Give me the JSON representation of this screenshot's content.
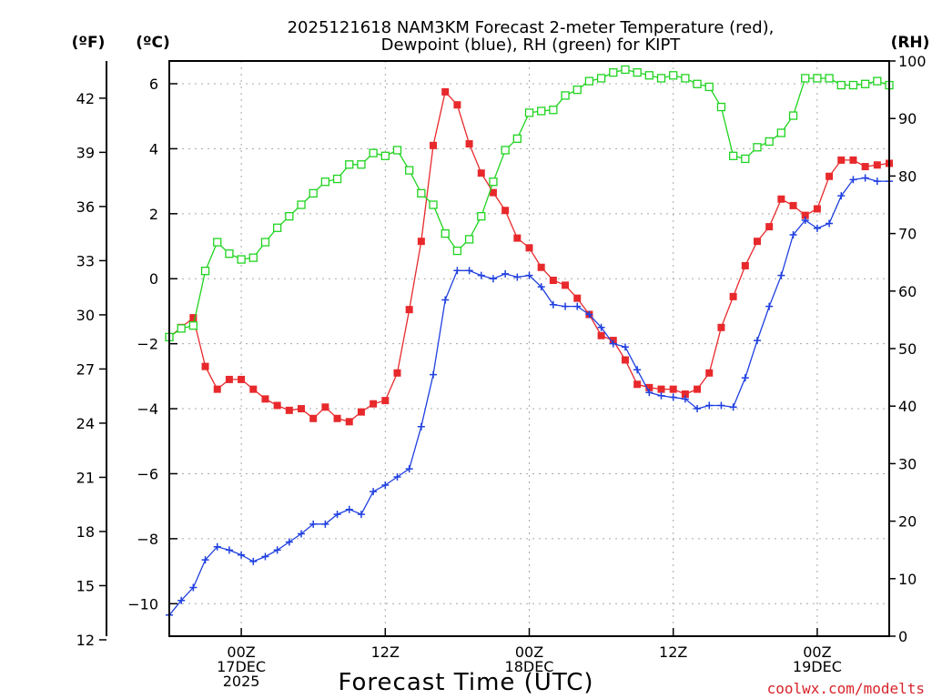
{
  "chart_data": {
    "type": "line",
    "title_line1": "2025121618 NAM3KM Forecast 2-meter Temperature (red),",
    "title_line2": "Dewpoint (blue), RH (green) for KIPT",
    "units": {
      "left_outer": "(ºF)",
      "left_inner": "(ºC)",
      "right": "(RH)"
    },
    "xlabel": "Forecast Time (UTC)",
    "credit": "coolwx.com/modelts",
    "x_start_hour": 18,
    "x_end_hour": 78,
    "x_ticks": [
      {
        "hour": 24,
        "line1": "00Z",
        "line2": "17DEC",
        "line3": "2025"
      },
      {
        "hour": 36,
        "line1": "12Z",
        "line2": "",
        "line3": ""
      },
      {
        "hour": 48,
        "line1": "00Z",
        "line2": "18DEC",
        "line3": ""
      },
      {
        "hour": 60,
        "line1": "12Z",
        "line2": "",
        "line3": ""
      },
      {
        "hour": 72,
        "line1": "00Z",
        "line2": "19DEC",
        "line3": ""
      }
    ],
    "celsius_axis": {
      "min": -11,
      "max": 6.7,
      "ticks": [
        "6",
        "4",
        "2",
        "0",
        "−2",
        "−4",
        "−6",
        "−8",
        "−10"
      ]
    },
    "fahrenheit_axis": {
      "ticks": [
        "42",
        "39",
        "36",
        "33",
        "30",
        "27",
        "24",
        "21",
        "18",
        "15",
        "12"
      ]
    },
    "rh_axis": {
      "min": 0,
      "max": 100,
      "ticks": [
        "100",
        "90",
        "80",
        "70",
        "60",
        "50",
        "40",
        "30",
        "20",
        "10",
        "0"
      ]
    },
    "series": [
      {
        "name": "2-meter Temperature",
        "units": "C",
        "color": "#e8292c",
        "marker": "filled-square",
        "hours": [
          18,
          19,
          20,
          21,
          22,
          23,
          24,
          25,
          26,
          27,
          28,
          29,
          30,
          31,
          32,
          33,
          34,
          35,
          36,
          37,
          38,
          39,
          40,
          41,
          42,
          43,
          44,
          45,
          46,
          47,
          48,
          49,
          50,
          51,
          52,
          53,
          54,
          55,
          56,
          57,
          58,
          59,
          60,
          61,
          62,
          63,
          64,
          65,
          66,
          67,
          68,
          69,
          70,
          71,
          72,
          73,
          74,
          75,
          76,
          77,
          78
        ],
        "values": [
          -1.8,
          -1.5,
          -1.2,
          -2.7,
          -3.4,
          -3.1,
          -3.1,
          -3.4,
          -3.7,
          -3.9,
          -4.05,
          -4.0,
          -4.3,
          -3.95,
          -4.3,
          -4.4,
          -4.1,
          -3.85,
          -3.75,
          -2.9,
          -0.95,
          1.15,
          4.1,
          5.75,
          5.35,
          4.15,
          3.25,
          2.65,
          2.1,
          1.25,
          0.95,
          0.35,
          -0.05,
          -0.2,
          -0.6,
          -1.1,
          -1.75,
          -1.9,
          -2.5,
          -3.25,
          -3.35,
          -3.4,
          -3.4,
          -3.55,
          -3.4,
          -2.9,
          -1.5,
          -0.55,
          0.4,
          1.15,
          1.6,
          2.45,
          2.25,
          1.95,
          2.15,
          3.15,
          3.65,
          3.65,
          3.45,
          3.5,
          3.55
        ]
      },
      {
        "name": "Dewpoint",
        "units": "C",
        "color": "#1f3fe0",
        "marker": "plus",
        "hours": [
          18,
          19,
          20,
          21,
          22,
          23,
          24,
          25,
          26,
          27,
          28,
          29,
          30,
          31,
          32,
          33,
          34,
          35,
          36,
          37,
          38,
          39,
          40,
          41,
          42,
          43,
          44,
          45,
          46,
          47,
          48,
          49,
          50,
          51,
          52,
          53,
          54,
          55,
          56,
          57,
          58,
          59,
          60,
          61,
          62,
          63,
          64,
          65,
          66,
          67,
          68,
          69,
          70,
          71,
          72,
          73,
          74,
          75,
          76,
          77,
          78
        ],
        "values": [
          -10.35,
          -9.9,
          -9.5,
          -8.65,
          -8.25,
          -8.35,
          -8.5,
          -8.7,
          -8.55,
          -8.35,
          -8.1,
          -7.85,
          -7.55,
          -7.55,
          -7.25,
          -7.1,
          -7.25,
          -6.55,
          -6.35,
          -6.1,
          -5.85,
          -4.55,
          -2.95,
          -0.65,
          0.25,
          0.25,
          0.1,
          0.0,
          0.15,
          0.05,
          0.1,
          -0.25,
          -0.8,
          -0.85,
          -0.85,
          -1.1,
          -1.5,
          -2.0,
          -2.1,
          -2.8,
          -3.5,
          -3.6,
          -3.65,
          -3.7,
          -4.0,
          -3.9,
          -3.9,
          -3.95,
          -3.05,
          -1.9,
          -0.85,
          0.1,
          1.35,
          1.8,
          1.55,
          1.7,
          2.55,
          3.05,
          3.1,
          3.0,
          3.0
        ]
      },
      {
        "name": "RH",
        "units": "%",
        "color": "#1fd41f",
        "marker": "open-square",
        "hours": [
          18,
          19,
          20,
          21,
          22,
          23,
          24,
          25,
          26,
          27,
          28,
          29,
          30,
          31,
          32,
          33,
          34,
          35,
          36,
          37,
          38,
          39,
          40,
          41,
          42,
          43,
          44,
          45,
          46,
          47,
          48,
          49,
          50,
          51,
          52,
          53,
          54,
          55,
          56,
          57,
          58,
          59,
          60,
          61,
          62,
          63,
          64,
          65,
          66,
          67,
          68,
          69,
          70,
          71,
          72,
          73,
          74,
          75,
          76,
          77,
          78
        ],
        "values": [
          52,
          53.5,
          54,
          63.5,
          68.5,
          66.5,
          65.5,
          65.8,
          68.5,
          71,
          73,
          75,
          77,
          79,
          79.5,
          82,
          82,
          84,
          83.5,
          84.5,
          81,
          77,
          75,
          70,
          67,
          69,
          73,
          79,
          84.5,
          86.5,
          91,
          91.3,
          91.5,
          94,
          95,
          96.5,
          97,
          98,
          98.5,
          98,
          97.5,
          97,
          97.5,
          97,
          96,
          95.5,
          92,
          83.5,
          83,
          85,
          86,
          87.5,
          90.5,
          97,
          97,
          97,
          95.8,
          95.8,
          96,
          96.5,
          95.8
        ]
      }
    ]
  }
}
